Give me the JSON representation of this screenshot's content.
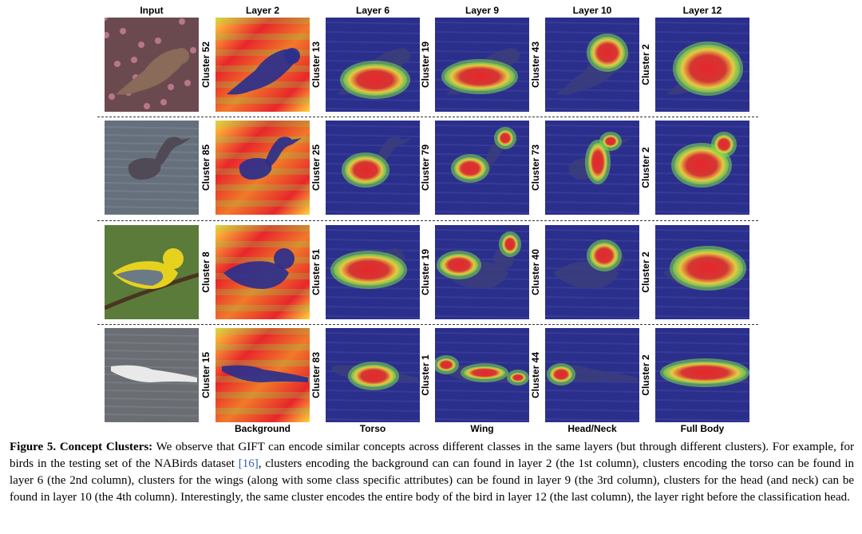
{
  "figure": {
    "column_headers": [
      "Input",
      "Layer 2",
      "Layer 6",
      "Layer 9",
      "Layer 10",
      "Layer 12"
    ],
    "column_footers": [
      "",
      "Background",
      "Torso",
      "Wing",
      "Head/Neck",
      "Full Body"
    ],
    "rows": [
      {
        "subject": "sparrow-on-flowering-branch",
        "input_bg": "#6b4a4f",
        "clusters": [
          "Cluster 52",
          "Cluster 13",
          "Cluster 19",
          "Cluster 43",
          "Cluster 2"
        ]
      },
      {
        "subject": "heron-in-water",
        "input_bg": "#66707c",
        "clusters": [
          "Cluster 85",
          "Cluster 25",
          "Cluster 79",
          "Cluster 73",
          "Cluster 2"
        ]
      },
      {
        "subject": "yellow-warbler-on-branch",
        "input_bg": "#5b7b3a",
        "clusters": [
          "Cluster 8",
          "Cluster 51",
          "Cluster 19",
          "Cluster 40",
          "Cluster 2"
        ]
      },
      {
        "subject": "gannet-in-flight",
        "input_bg": "#6a6d72",
        "clusters": [
          "Cluster 15",
          "Cluster 83",
          "Cluster 1",
          "Cluster 44",
          "Cluster 2"
        ]
      }
    ],
    "heatmap_colors": {
      "low": "#2b2f8c",
      "mid": "#7fe04a",
      "high": "#e8262b",
      "peak": "#ffd43a"
    }
  },
  "caption": {
    "label": "Figure 5.",
    "title": "Concept Clusters:",
    "text_before_ref": "We observe that GIFT can encode similar concepts across different classes in the same layers (but through different clusters). For example, for birds in the testing set of the NABirds dataset",
    "ref": "[16]",
    "text_after_ref": ", clusters encoding the background can can found in layer 2 (the 1st column), clusters encoding the torso can be found in layer 6 (the 2nd column), clusters for the wings (along with some class specific attributes) can be found in layer 9 (the 3rd column), clusters for the head (and neck) can be found in layer 10 (the 4th column). Interestingly, the same cluster encodes the entire body of the bird in layer 12 (the last column), the layer right before the classification head."
  }
}
